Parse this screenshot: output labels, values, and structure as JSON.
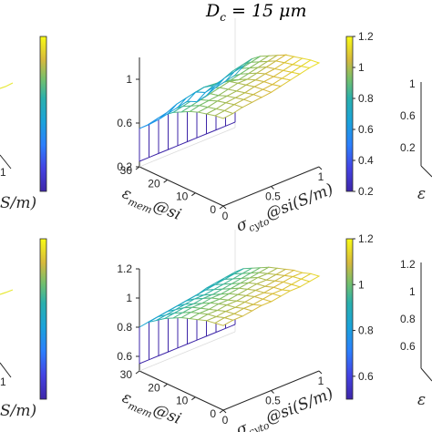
{
  "title": "D_c = 15 μm",
  "title_parts": {
    "main": "D",
    "sub": "c",
    "rest": " = 15 μm"
  },
  "colors": {
    "low": "#3e26a8",
    "mid": "#2ab0ad",
    "high": "#f9fb15",
    "axis": "#262626",
    "bg": "#ffffff"
  },
  "chart_data": [
    {
      "type": "surface",
      "title": "D_c = 15 μm",
      "xlabel": {
        "main": "σ",
        "sub": "cyto",
        "rest": "@si(S/m)"
      },
      "ylabel": {
        "main": "ε",
        "sub": "mem",
        "rest": "@si"
      },
      "x_ticks": [
        "0",
        "0.5",
        "1"
      ],
      "y_ticks": [
        "0",
        "10",
        "20",
        "30"
      ],
      "z_ticks": [
        "0.2",
        "0.6",
        "1"
      ],
      "zlim": [
        0.2,
        1.2
      ],
      "colorbar_ticks": [
        "0.2",
        "0.4",
        "0.6",
        "0.8",
        "1",
        "1.2"
      ],
      "colorbar_range": [
        0.2,
        1.2
      ],
      "x_values": [
        0,
        0.1,
        0.2,
        0.3,
        0.4,
        0.5,
        0.6,
        0.7,
        0.8,
        0.9,
        1.0
      ],
      "y_values": [
        30,
        27,
        24,
        21,
        18,
        15,
        12,
        9,
        6,
        3,
        0
      ],
      "z": [
        [
          0.55,
          0.55,
          0.56,
          0.58,
          0.6,
          0.62,
          0.58,
          0.6,
          0.64,
          0.66,
          0.68
        ],
        [
          0.62,
          0.64,
          0.66,
          0.7,
          0.72,
          0.74,
          0.7,
          0.72,
          0.76,
          0.78,
          0.8
        ],
        [
          0.7,
          0.72,
          0.74,
          0.78,
          0.8,
          0.82,
          0.8,
          0.82,
          0.86,
          0.88,
          0.9
        ],
        [
          0.78,
          0.8,
          0.82,
          0.84,
          0.86,
          0.88,
          0.86,
          0.88,
          0.92,
          0.94,
          0.96
        ],
        [
          0.84,
          0.86,
          0.88,
          0.9,
          0.92,
          0.94,
          0.92,
          0.94,
          0.96,
          0.98,
          1.0
        ],
        [
          0.88,
          0.9,
          0.92,
          0.94,
          0.96,
          0.98,
          0.96,
          0.98,
          1.0,
          1.02,
          1.04
        ],
        [
          0.92,
          0.94,
          0.95,
          0.96,
          0.98,
          1.0,
          1.0,
          1.02,
          1.04,
          1.06,
          1.08
        ],
        [
          0.95,
          0.96,
          0.98,
          0.99,
          1.0,
          1.02,
          1.03,
          1.05,
          1.06,
          1.08,
          1.1
        ],
        [
          0.97,
          0.98,
          1.0,
          1.01,
          1.02,
          1.04,
          1.05,
          1.06,
          1.08,
          1.1,
          1.12
        ],
        [
          0.99,
          1.0,
          1.02,
          1.03,
          1.04,
          1.05,
          1.06,
          1.08,
          1.1,
          1.12,
          1.14
        ],
        [
          1.0,
          1.01,
          1.03,
          1.04,
          1.05,
          1.06,
          1.08,
          1.1,
          1.12,
          1.14,
          1.15
        ]
      ]
    },
    {
      "type": "surface",
      "xlabel": {
        "main": "σ",
        "sub": "cyto",
        "rest": "@si(S/m)"
      },
      "ylabel": {
        "main": "ε",
        "sub": "mem",
        "rest": "@si"
      },
      "x_ticks": [
        "0",
        "0.5",
        "1"
      ],
      "y_ticks": [
        "0",
        "10",
        "20",
        "30"
      ],
      "z_ticks": [
        "0.6",
        "0.8",
        "1",
        "1.2"
      ],
      "zlim": [
        0.5,
        1.2
      ],
      "colorbar_ticks": [
        "0.6",
        "0.8",
        "1",
        "1.2"
      ],
      "colorbar_range": [
        0.5,
        1.2
      ],
      "x_values": [
        0,
        0.1,
        0.2,
        0.3,
        0.4,
        0.5,
        0.6,
        0.7,
        0.8,
        0.9,
        1.0
      ],
      "y_values": [
        30,
        27,
        24,
        21,
        18,
        15,
        12,
        9,
        6,
        3,
        0
      ],
      "z": [
        [
          0.8,
          0.81,
          0.82,
          0.83,
          0.84,
          0.85,
          0.86,
          0.88,
          0.89,
          0.9,
          0.91
        ],
        [
          0.86,
          0.87,
          0.88,
          0.89,
          0.9,
          0.91,
          0.92,
          0.93,
          0.94,
          0.95,
          0.96
        ],
        [
          0.9,
          0.91,
          0.92,
          0.93,
          0.94,
          0.94,
          0.95,
          0.96,
          0.97,
          0.98,
          0.99
        ],
        [
          0.94,
          0.95,
          0.96,
          0.96,
          0.97,
          0.97,
          0.98,
          0.99,
          1.0,
          1.01,
          1.02
        ],
        [
          0.97,
          0.98,
          0.99,
          0.99,
          1.0,
          1.0,
          1.01,
          1.02,
          1.03,
          1.04,
          1.05
        ],
        [
          1.0,
          1.01,
          1.01,
          1.02,
          1.02,
          1.03,
          1.04,
          1.05,
          1.06,
          1.06,
          1.07
        ],
        [
          1.02,
          1.03,
          1.03,
          1.04,
          1.04,
          1.05,
          1.06,
          1.07,
          1.07,
          1.08,
          1.09
        ],
        [
          1.04,
          1.05,
          1.05,
          1.06,
          1.06,
          1.07,
          1.08,
          1.08,
          1.09,
          1.1,
          1.11
        ],
        [
          1.06,
          1.06,
          1.07,
          1.07,
          1.08,
          1.09,
          1.09,
          1.1,
          1.11,
          1.12,
          1.12
        ],
        [
          1.07,
          1.08,
          1.08,
          1.09,
          1.09,
          1.1,
          1.11,
          1.11,
          1.12,
          1.13,
          1.14
        ],
        [
          1.08,
          1.09,
          1.09,
          1.1,
          1.11,
          1.11,
          1.12,
          1.13,
          1.13,
          1.14,
          1.15
        ]
      ]
    }
  ],
  "partial_left": {
    "top": {
      "tick_bottom": "1",
      "label_fragment": "S/m)"
    },
    "bottom": {
      "tick_bottom": "1",
      "label_fragment": "S/m)"
    }
  },
  "partial_right": {
    "top": {
      "ticks": [
        "1",
        "0.6",
        "0.2"
      ],
      "label_fragment": "ε"
    },
    "bottom": {
      "ticks": [
        "1.2",
        "1",
        "0.8",
        "0.6"
      ],
      "label_fragment": "ε"
    }
  }
}
